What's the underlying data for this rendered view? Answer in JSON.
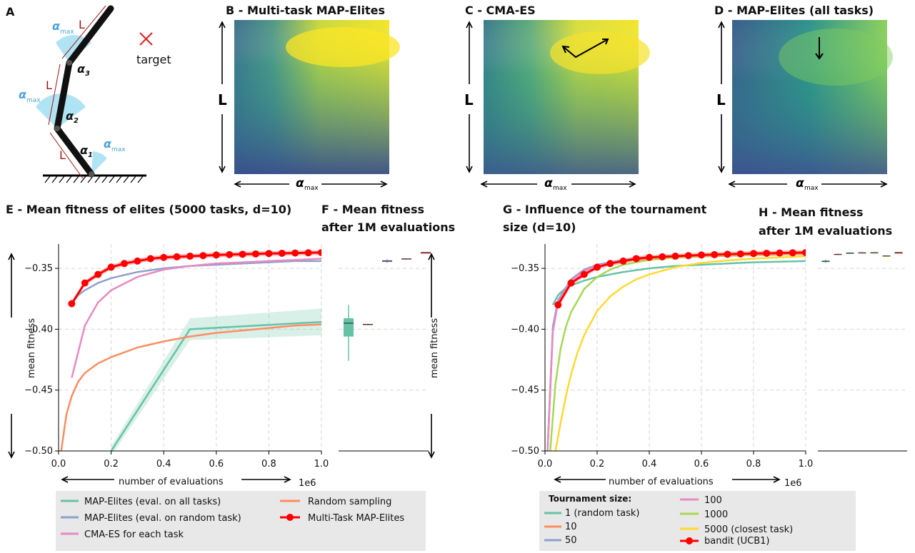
{
  "panels": {
    "a": {
      "label": "A",
      "target_label": "target",
      "len_label": "L",
      "amax": "max"
    },
    "b": {
      "title": "B - Multi-task MAP-Elites"
    },
    "c": {
      "title": "C -      CMA-ES"
    },
    "d": {
      "title": "D - MAP-Elites (all tasks)"
    },
    "heat_axes": {
      "ylabel": "L",
      "xlabel_sub": "max"
    },
    "e": {
      "title": "E - Mean fitness of elites (5000 tasks, d=10)"
    },
    "f": {
      "title_line1": "F - Mean fitness",
      "title_line2": "after 1M evaluations"
    },
    "g": {
      "title_line1": "G - Influence of the tournament",
      "title_line2": "size (d=10)"
    },
    "h": {
      "title_line1": "H - Mean fitness",
      "title_line2": "after 1M evaluations"
    }
  },
  "axes": {
    "ylabel": "mean fitness",
    "xlabel": "number of evaluations",
    "x_offset": "1e6",
    "xticks": [
      "0.0",
      "0.2",
      "0.4",
      "0.6",
      "0.8",
      "1.0"
    ],
    "yticks": [
      "−0.35",
      "−0.40",
      "−0.45",
      "−0.50"
    ]
  },
  "legend_e": [
    "MAP-Elites (eval. on all tasks)",
    "MAP-Elites (eval. on random task)",
    "CMA-ES for each task",
    "Random sampling",
    "Multi-Task MAP-Elites"
  ],
  "legend_g": {
    "title": "Tournament size:",
    "items": [
      "1 (random task)",
      "10",
      "50",
      "100",
      "1000",
      "5000 (closest task)",
      "bandit (UCB1)"
    ]
  },
  "colors": {
    "teal": "#66c2a5",
    "orange": "#fc8d62",
    "blue": "#8da0cb",
    "pink": "#e78ac3",
    "green": "#a6d854",
    "yellow": "#ffd92f",
    "red": "#ff0000",
    "legend_bg": "#e8e8e8"
  },
  "chart_data": [
    {
      "type": "line",
      "title": "E - Mean fitness of elites (5000 tasks, d=10)",
      "xlabel": "number of evaluations",
      "ylabel": "mean fitness",
      "xlim": [
        0,
        1000000
      ],
      "ylim": [
        -0.5,
        -0.33
      ],
      "grid": true,
      "legend": "bottom",
      "series": [
        {
          "name": "MAP-Elites (eval. on all tasks)",
          "x": [
            200000,
            500000,
            1000000
          ],
          "y": [
            -0.5,
            -0.4,
            -0.394
          ]
        },
        {
          "name": "MAP-Elites (eval. on random task)",
          "x": [
            50000,
            75000,
            100000,
            150000,
            200000,
            300000,
            400000,
            500000,
            600000,
            700000,
            800000,
            900000,
            1000000
          ],
          "y": [
            -0.379,
            -0.372,
            -0.368,
            -0.362,
            -0.358,
            -0.353,
            -0.35,
            -0.348,
            -0.347,
            -0.346,
            -0.345,
            -0.344,
            -0.344
          ]
        },
        {
          "name": "CMA-ES for each task",
          "x": [
            50000,
            100000,
            150000,
            200000,
            300000,
            400000,
            500000,
            600000,
            700000,
            800000,
            900000,
            1000000
          ],
          "y": [
            -0.44,
            -0.397,
            -0.378,
            -0.368,
            -0.357,
            -0.351,
            -0.348,
            -0.346,
            -0.345,
            -0.344,
            -0.343,
            -0.342
          ]
        },
        {
          "name": "Random sampling",
          "x": [
            10000,
            30000,
            50000,
            75000,
            100000,
            150000,
            200000,
            300000,
            400000,
            500000,
            600000,
            700000,
            800000,
            900000,
            1000000
          ],
          "y": [
            -0.5,
            -0.47,
            -0.455,
            -0.443,
            -0.436,
            -0.428,
            -0.423,
            -0.415,
            -0.41,
            -0.406,
            -0.403,
            -0.401,
            -0.399,
            -0.397,
            -0.396
          ]
        },
        {
          "name": "Multi-Task MAP-Elites",
          "x": [
            50000,
            100000,
            150000,
            200000,
            250000,
            300000,
            350000,
            400000,
            450000,
            500000,
            550000,
            600000,
            650000,
            700000,
            750000,
            800000,
            850000,
            900000,
            950000,
            1000000
          ],
          "y": [
            -0.379,
            -0.362,
            -0.355,
            -0.349,
            -0.346,
            -0.344,
            -0.342,
            -0.341,
            -0.3405,
            -0.34,
            -0.3395,
            -0.339,
            -0.3387,
            -0.3384,
            -0.3381,
            -0.3378,
            -0.3376,
            -0.3374,
            -0.3372,
            -0.337
          ]
        }
      ]
    },
    {
      "type": "box",
      "title": "F - Mean fitness after 1M evaluations",
      "ylabel": "mean fitness",
      "ylim": [
        -0.5,
        -0.33
      ],
      "series": [
        {
          "name": "MAP-Elites (eval. on all tasks)",
          "whisker_low": -0.426,
          "q1": -0.406,
          "median": -0.395,
          "q3": -0.391,
          "whisker_high": -0.38
        },
        {
          "name": "Random sampling",
          "whisker_low": -0.3965,
          "q1": -0.3962,
          "median": -0.396,
          "q3": -0.3958,
          "whisker_high": -0.3955
        },
        {
          "name": "MAP-Elites (eval. on random task)",
          "whisker_low": -0.3455,
          "q1": -0.3447,
          "median": -0.344,
          "q3": -0.3433,
          "whisker_high": -0.3425
        },
        {
          "name": "CMA-ES for each task",
          "whisker_low": -0.3426,
          "q1": -0.3424,
          "median": -0.3422,
          "q3": -0.342,
          "whisker_high": -0.3418
        },
        {
          "name": "Multi-Task MAP-Elites",
          "whisker_low": -0.3372,
          "q1": -0.3371,
          "median": -0.337,
          "q3": -0.3369,
          "whisker_high": -0.3368
        }
      ]
    },
    {
      "type": "line",
      "title": "G - Influence of the tournament size (d=10)",
      "xlabel": "number of evaluations",
      "ylabel": "mean fitness",
      "xlim": [
        0,
        1000000
      ],
      "ylim": [
        -0.5,
        -0.33
      ],
      "grid": true,
      "legend": "bottom",
      "series": [
        {
          "name": "1 (random task)",
          "x": [
            30000,
            50000,
            75000,
            100000,
            150000,
            200000,
            300000,
            400000,
            500000,
            600000,
            700000,
            800000,
            900000,
            1000000
          ],
          "y": [
            -0.38,
            -0.372,
            -0.367,
            -0.364,
            -0.36,
            -0.357,
            -0.353,
            -0.35,
            -0.348,
            -0.347,
            -0.346,
            -0.345,
            -0.3445,
            -0.344
          ]
        },
        {
          "name": "10",
          "x": [
            10000,
            30000,
            50000,
            100000,
            150000,
            200000,
            300000,
            400000,
            500000,
            600000,
            700000,
            800000,
            900000,
            1000000
          ],
          "y": [
            -0.5,
            -0.4,
            -0.378,
            -0.36,
            -0.352,
            -0.348,
            -0.344,
            -0.342,
            -0.341,
            -0.3402,
            -0.3396,
            -0.339,
            -0.3386,
            -0.3382
          ]
        },
        {
          "name": "50",
          "x": [
            10000,
            30000,
            50000,
            100000,
            150000,
            200000,
            300000,
            400000,
            500000,
            600000,
            700000,
            800000,
            900000,
            1000000
          ],
          "y": [
            -0.5,
            -0.398,
            -0.376,
            -0.359,
            -0.351,
            -0.347,
            -0.343,
            -0.341,
            -0.3398,
            -0.339,
            -0.3384,
            -0.338,
            -0.3376,
            -0.3372
          ]
        },
        {
          "name": "100",
          "x": [
            10000,
            30000,
            50000,
            100000,
            150000,
            200000,
            300000,
            400000,
            500000,
            600000,
            700000,
            800000,
            900000,
            1000000
          ],
          "y": [
            -0.5,
            -0.402,
            -0.378,
            -0.36,
            -0.352,
            -0.348,
            -0.3435,
            -0.3412,
            -0.34,
            -0.3392,
            -0.3386,
            -0.3382,
            -0.3378,
            -0.3374
          ]
        },
        {
          "name": "1000",
          "x": [
            20000,
            40000,
            60000,
            80000,
            100000,
            150000,
            200000,
            250000,
            300000,
            400000,
            500000,
            600000,
            700000,
            800000,
            900000,
            1000000
          ],
          "y": [
            -0.5,
            -0.445,
            -0.416,
            -0.398,
            -0.386,
            -0.367,
            -0.357,
            -0.351,
            -0.347,
            -0.343,
            -0.341,
            -0.3398,
            -0.339,
            -0.3384,
            -0.338,
            -0.3376
          ]
        },
        {
          "name": "5000 (closest task)",
          "x": [
            40000,
            60000,
            80000,
            100000,
            125000,
            150000,
            200000,
            250000,
            300000,
            350000,
            400000,
            500000,
            600000,
            700000,
            800000,
            900000,
            1000000
          ],
          "y": [
            -0.5,
            -0.477,
            -0.455,
            -0.437,
            -0.419,
            -0.405,
            -0.385,
            -0.373,
            -0.365,
            -0.359,
            -0.355,
            -0.349,
            -0.3455,
            -0.3435,
            -0.342,
            -0.341,
            -0.34
          ]
        },
        {
          "name": "bandit (UCB1)",
          "x": [
            50000,
            100000,
            150000,
            200000,
            250000,
            300000,
            350000,
            400000,
            450000,
            500000,
            550000,
            600000,
            650000,
            700000,
            750000,
            800000,
            850000,
            900000,
            950000,
            1000000
          ],
          "y": [
            -0.38,
            -0.362,
            -0.355,
            -0.349,
            -0.346,
            -0.344,
            -0.342,
            -0.341,
            -0.3405,
            -0.34,
            -0.3395,
            -0.339,
            -0.3387,
            -0.3384,
            -0.3381,
            -0.3378,
            -0.3376,
            -0.3374,
            -0.3372,
            -0.337
          ]
        }
      ]
    },
    {
      "type": "box",
      "title": "H - Mean fitness after 1M evaluations",
      "ylim": [
        -0.5,
        -0.33
      ],
      "series": [
        {
          "name": "1 (random task)",
          "whisker_low": -0.3455,
          "q1": -0.3448,
          "median": -0.3442,
          "q3": -0.3436,
          "whisker_high": -0.3428
        },
        {
          "name": "10",
          "whisker_low": -0.3392,
          "q1": -0.3388,
          "median": -0.3385,
          "q3": -0.3382,
          "whisker_high": -0.3378
        },
        {
          "name": "50",
          "whisker_low": -0.3378,
          "q1": -0.3376,
          "median": -0.3374,
          "q3": -0.3372,
          "whisker_high": -0.337
        },
        {
          "name": "100",
          "whisker_low": -0.3376,
          "q1": -0.3374,
          "median": -0.3372,
          "q3": -0.337,
          "whisker_high": -0.3368
        },
        {
          "name": "1000",
          "whisker_low": -0.3374,
          "q1": -0.3372,
          "median": -0.3371,
          "q3": -0.337,
          "whisker_high": -0.3368
        },
        {
          "name": "5000 (closest task)",
          "whisker_low": -0.3402,
          "q1": -0.34,
          "median": -0.3398,
          "q3": -0.3396,
          "whisker_high": -0.3394
        },
        {
          "name": "bandit (UCB1)",
          "whisker_low": -0.3372,
          "q1": -0.3371,
          "median": -0.337,
          "q3": -0.3369,
          "whisker_high": -0.3368
        }
      ]
    }
  ]
}
